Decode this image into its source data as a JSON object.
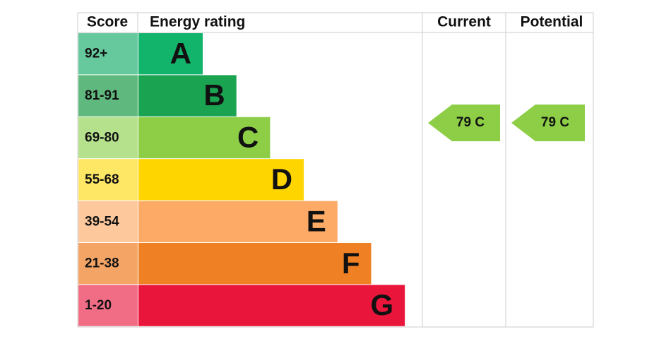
{
  "header": {
    "score": "Score",
    "energy_rating": "Energy rating",
    "current": "Current",
    "potential": "Potential"
  },
  "rows": [
    {
      "score": "92+",
      "letter": "A",
      "color": "#12b36b",
      "score_color": "#66c99e"
    },
    {
      "score": "81-91",
      "letter": "B",
      "color": "#1aa351",
      "score_color": "#5fb87e"
    },
    {
      "score": "69-80",
      "letter": "C",
      "color": "#8dce46",
      "score_color": "#b5e08c"
    },
    {
      "score": "55-68",
      "letter": "D",
      "color": "#ffd500",
      "score_color": "#ffe766"
    },
    {
      "score": "39-54",
      "letter": "E",
      "color": "#fcaa65",
      "score_color": "#fdc89c"
    },
    {
      "score": "21-38",
      "letter": "F",
      "color": "#ef8023",
      "score_color": "#f4a566"
    },
    {
      "score": "1-20",
      "letter": "G",
      "color": "#e9153b",
      "score_color": "#f06d85"
    }
  ],
  "current": {
    "label": "79 C",
    "color": "#8dce46"
  },
  "potential": {
    "label": "79 C",
    "color": "#8dce46"
  }
}
